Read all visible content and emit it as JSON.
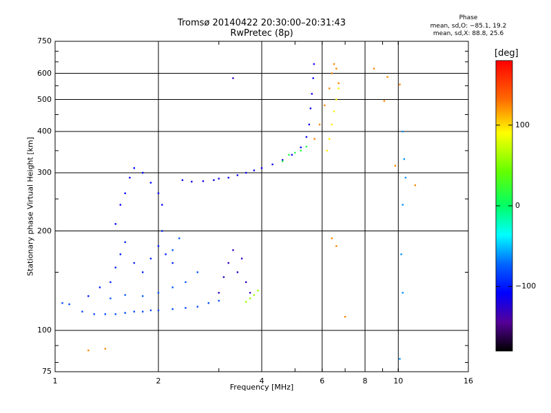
{
  "chart_data": {
    "type": "scatter",
    "title": "Tromsø 20140422 20:30:00–20:31:43",
    "subtitle": "RwPretec (8p)",
    "xlabel": "Frequency [MHz]",
    "ylabel": "Stationary phase Virtual Height [km]",
    "x_scale": "log",
    "y_scale": "log",
    "xlim": [
      1,
      16
    ],
    "ylim": [
      75,
      750
    ],
    "x_ticks": [
      1,
      2,
      4,
      6,
      8,
      10,
      16
    ],
    "x_tick_labels": [
      "1",
      "2",
      "4",
      "6",
      "8",
      "10",
      "16"
    ],
    "y_ticks": [
      75,
      100,
      200,
      300,
      400,
      500,
      600,
      750
    ],
    "y_tick_labels": [
      "75",
      "100",
      "200",
      "300",
      "400",
      "500",
      "600",
      "750"
    ],
    "grid": true,
    "phase_stats": {
      "heading": "Phase",
      "line_o": "mean, sd,O: −85.1, 19.2",
      "line_x": "mean, sd,X: 88.8, 25.6"
    },
    "colorbar": {
      "label": "[deg]",
      "min": -180,
      "max": 180,
      "ticks": [
        100,
        0,
        -100
      ],
      "tick_labels": [
        "100",
        "0",
        "−100"
      ]
    },
    "traces": [
      {
        "phase": -80,
        "points": [
          [
            1.05,
            121
          ],
          [
            1.1,
            120
          ],
          [
            1.2,
            114
          ],
          [
            1.3,
            112
          ],
          [
            1.4,
            112
          ],
          [
            1.5,
            112
          ],
          [
            1.6,
            113
          ],
          [
            1.7,
            114
          ],
          [
            1.8,
            114
          ],
          [
            1.9,
            115
          ],
          [
            2.0,
            115
          ],
          [
            2.2,
            116
          ],
          [
            2.4,
            117
          ],
          [
            2.6,
            118
          ],
          [
            2.8,
            121
          ],
          [
            3.0,
            123
          ]
        ]
      },
      {
        "phase": -95,
        "points": [
          [
            1.25,
            127
          ],
          [
            1.35,
            135
          ],
          [
            1.45,
            140
          ],
          [
            1.5,
            155
          ],
          [
            1.55,
            170
          ],
          [
            1.6,
            185
          ],
          [
            1.7,
            160
          ],
          [
            1.8,
            150
          ],
          [
            1.9,
            165
          ],
          [
            2.0,
            180
          ],
          [
            2.05,
            200
          ],
          [
            2.1,
            170
          ],
          [
            2.2,
            160
          ]
        ]
      },
      {
        "phase": -105,
        "points": [
          [
            1.5,
            210
          ],
          [
            1.55,
            240
          ],
          [
            1.6,
            260
          ],
          [
            1.65,
            290
          ],
          [
            1.7,
            310
          ],
          [
            1.8,
            300
          ],
          [
            1.9,
            280
          ],
          [
            2.0,
            260
          ],
          [
            2.05,
            240
          ]
        ]
      },
      {
        "phase": -75,
        "points": [
          [
            1.45,
            125
          ],
          [
            1.6,
            128
          ],
          [
            1.8,
            127
          ],
          [
            2.0,
            130
          ],
          [
            2.2,
            135
          ],
          [
            2.4,
            140
          ],
          [
            2.6,
            150
          ],
          [
            2.2,
            175
          ],
          [
            2.3,
            190
          ]
        ]
      },
      {
        "phase": -110,
        "points": [
          [
            2.35,
            285
          ],
          [
            2.5,
            282
          ],
          [
            2.7,
            283
          ],
          [
            2.9,
            285
          ],
          [
            3.0,
            288
          ],
          [
            3.2,
            290
          ],
          [
            3.4,
            295
          ],
          [
            3.6,
            300
          ],
          [
            3.8,
            305
          ],
          [
            4.0,
            310
          ],
          [
            4.3,
            318
          ],
          [
            4.6,
            328
          ],
          [
            4.9,
            340
          ],
          [
            5.2,
            358
          ],
          [
            5.4,
            385
          ],
          [
            5.5,
            420
          ],
          [
            5.55,
            470
          ],
          [
            5.6,
            520
          ],
          [
            5.65,
            580
          ],
          [
            5.68,
            640
          ]
        ]
      },
      {
        "phase": -125,
        "points": [
          [
            3.0,
            130
          ],
          [
            3.1,
            145
          ],
          [
            3.2,
            160
          ],
          [
            3.3,
            175
          ],
          [
            3.4,
            150
          ],
          [
            3.5,
            165
          ],
          [
            3.6,
            140
          ],
          [
            3.7,
            130
          ],
          [
            3.3,
            580
          ]
        ]
      },
      {
        "phase": 60,
        "points": [
          [
            3.6,
            122
          ],
          [
            3.7,
            125
          ],
          [
            3.8,
            128
          ],
          [
            3.9,
            132
          ]
        ]
      },
      {
        "phase": 15,
        "points": [
          [
            4.6,
            325
          ],
          [
            4.8,
            340
          ],
          [
            5.0,
            345
          ],
          [
            5.2,
            350
          ],
          [
            5.4,
            360
          ]
        ]
      },
      {
        "phase": 130,
        "points": [
          [
            5.7,
            380
          ],
          [
            5.9,
            420
          ],
          [
            6.1,
            480
          ],
          [
            6.3,
            540
          ],
          [
            6.4,
            600
          ],
          [
            6.5,
            640
          ],
          [
            6.6,
            620
          ],
          [
            6.7,
            560
          ]
        ]
      },
      {
        "phase": 95,
        "points": [
          [
            6.2,
            350
          ],
          [
            6.3,
            380
          ],
          [
            6.4,
            420
          ],
          [
            6.5,
            460
          ],
          [
            6.6,
            500
          ],
          [
            6.7,
            540
          ]
        ]
      },
      {
        "phase": -60,
        "points": [
          [
            10.3,
            400
          ],
          [
            10.4,
            330
          ],
          [
            10.5,
            290
          ],
          [
            10.3,
            240
          ],
          [
            10.2,
            170
          ],
          [
            10.3,
            130
          ],
          [
            10.1,
            82
          ]
        ]
      },
      {
        "phase": 130,
        "points": [
          [
            6.4,
            190
          ],
          [
            6.6,
            180
          ],
          [
            7.0,
            110
          ],
          [
            8.5,
            620
          ],
          [
            9.3,
            585
          ],
          [
            9.1,
            495
          ],
          [
            10.1,
            555
          ],
          [
            11.2,
            275
          ],
          [
            9.8,
            315
          ],
          [
            1.4,
            88
          ],
          [
            1.25,
            87
          ]
        ]
      }
    ]
  }
}
